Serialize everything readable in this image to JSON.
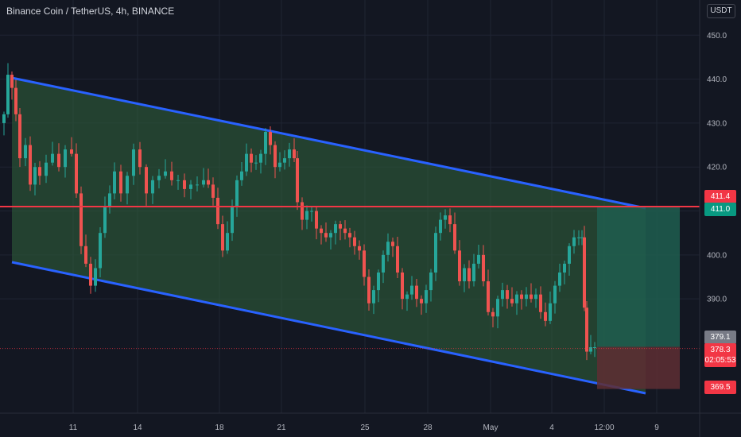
{
  "header": {
    "title": "Binance Coin / TetherUS, 4h, BINANCE"
  },
  "currency_label": "USDT",
  "chart_data": {
    "type": "candlestick",
    "title": "Binance Coin / TetherUS, 4h, BINANCE",
    "y_ticks": [
      450,
      440,
      430,
      420,
      410,
      400,
      390
    ],
    "ylim": [
      364,
      458
    ],
    "y_tick_labels": [
      "450.0",
      "440.0",
      "430.0",
      "420.0",
      "410.0",
      "400.0",
      "390.0"
    ],
    "x_tick_labels": [
      "11",
      "14",
      "18",
      "21",
      "25",
      "28",
      "May",
      "4",
      "12:00",
      "9"
    ],
    "grid": true,
    "levels": {
      "resistance": 411.0,
      "resistance_label": "411.0",
      "target_label": "411.4",
      "stop_label": "369.5",
      "last_price": 378.3,
      "last_price_label": "378.3",
      "countdown": "02:05:53",
      "prev_close_label": "379.1"
    },
    "colors": {
      "up": "#26a69a",
      "down": "#ef5350",
      "channel": "#2962ff",
      "channel_fill": "#2e5e3a",
      "resistance": "#f23645",
      "profit_zone": "#1f5e4f",
      "loss_zone": "#5e2e33"
    }
  }
}
